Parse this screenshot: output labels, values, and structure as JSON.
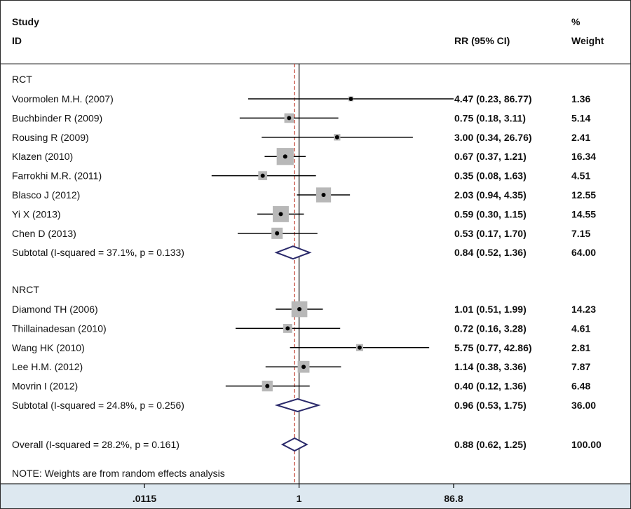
{
  "chart_data": {
    "type": "forest",
    "header": {
      "study_label": "Study",
      "id_label": "ID",
      "effect_label": "RR (95% CI)",
      "weight_label_top": "%",
      "weight_label": "Weight"
    },
    "x_axis": {
      "scale": "log",
      "range": [
        0.0115,
        86.8
      ],
      "ticks": [
        0.0115,
        1,
        86.8
      ],
      "tick_labels": [
        ".0115",
        "1",
        "86.8"
      ]
    },
    "overall_effect": 0.88,
    "groups": [
      {
        "name": "RCT",
        "studies": [
          {
            "label": "Voormolen M.H. (2007)",
            "rr": 4.47,
            "lo": 0.23,
            "hi": 86.77,
            "ci_text": "4.47 (0.23, 86.77)",
            "weight": 1.36,
            "weight_text": "1.36"
          },
          {
            "label": "Buchbinder R (2009)",
            "rr": 0.75,
            "lo": 0.18,
            "hi": 3.11,
            "ci_text": "0.75 (0.18, 3.11)",
            "weight": 5.14,
            "weight_text": "5.14"
          },
          {
            "label": "Rousing R (2009)",
            "rr": 3.0,
            "lo": 0.34,
            "hi": 26.76,
            "ci_text": "3.00 (0.34, 26.76)",
            "weight": 2.41,
            "weight_text": "2.41"
          },
          {
            "label": "Klazen (2010)",
            "rr": 0.67,
            "lo": 0.37,
            "hi": 1.21,
            "ci_text": "0.67 (0.37, 1.21)",
            "weight": 16.34,
            "weight_text": "16.34"
          },
          {
            "label": "Farrokhi M.R. (2011)",
            "rr": 0.35,
            "lo": 0.08,
            "hi": 1.63,
            "ci_text": "0.35 (0.08, 1.63)",
            "weight": 4.51,
            "weight_text": "4.51"
          },
          {
            "label": "Blasco J (2012)",
            "rr": 2.03,
            "lo": 0.94,
            "hi": 4.35,
            "ci_text": "2.03 (0.94, 4.35)",
            "weight": 12.55,
            "weight_text": "12.55"
          },
          {
            "label": "Yi X (2013)",
            "rr": 0.59,
            "lo": 0.3,
            "hi": 1.15,
            "ci_text": "0.59 (0.30, 1.15)",
            "weight": 14.55,
            "weight_text": "14.55"
          },
          {
            "label": "Chen D (2013)",
            "rr": 0.53,
            "lo": 0.17,
            "hi": 1.7,
            "ci_text": "0.53 (0.17, 1.70)",
            "weight": 7.15,
            "weight_text": "7.15"
          }
        ],
        "subtotal": {
          "label": "Subtotal  (I-squared = 37.1%, p = 0.133)",
          "rr": 0.84,
          "lo": 0.52,
          "hi": 1.36,
          "ci_text": "0.84 (0.52, 1.36)",
          "weight_text": "64.00"
        }
      },
      {
        "name": "NRCT",
        "studies": [
          {
            "label": "Diamond TH (2006)",
            "rr": 1.01,
            "lo": 0.51,
            "hi": 1.99,
            "ci_text": "1.01 (0.51, 1.99)",
            "weight": 14.23,
            "weight_text": "14.23"
          },
          {
            "label": "Thillainadesan (2010)",
            "rr": 0.72,
            "lo": 0.16,
            "hi": 3.28,
            "ci_text": "0.72 (0.16, 3.28)",
            "weight": 4.61,
            "weight_text": "4.61"
          },
          {
            "label": "Wang HK (2010)",
            "rr": 5.75,
            "lo": 0.77,
            "hi": 42.86,
            "ci_text": "5.75 (0.77, 42.86)",
            "weight": 2.81,
            "weight_text": "2.81"
          },
          {
            "label": "Lee H.M. (2012)",
            "rr": 1.14,
            "lo": 0.38,
            "hi": 3.36,
            "ci_text": "1.14 (0.38, 3.36)",
            "weight": 7.87,
            "weight_text": "7.87"
          },
          {
            "label": "Movrin I (2012)",
            "rr": 0.4,
            "lo": 0.12,
            "hi": 1.36,
            "ci_text": "0.40 (0.12, 1.36)",
            "weight": 6.48,
            "weight_text": "6.48"
          }
        ],
        "subtotal": {
          "label": "Subtotal  (I-squared = 24.8%, p = 0.256)",
          "rr": 0.96,
          "lo": 0.53,
          "hi": 1.75,
          "ci_text": "0.96 (0.53, 1.75)",
          "weight_text": "36.00"
        }
      }
    ],
    "overall": {
      "label": "Overall  (I-squared = 28.2%, p = 0.161)",
      "rr": 0.88,
      "lo": 0.62,
      "hi": 1.25,
      "ci_text": "0.88 (0.62, 1.25)",
      "weight_text": "100.00"
    },
    "note": "NOTE: Weights are from random effects analysis",
    "colors": {
      "frame": "#2a2a2a",
      "box": "#b8b8b8",
      "diamond": "#2b2a6b",
      "reference_line": "#c0392b",
      "axis_band": "#dde8f0"
    }
  }
}
